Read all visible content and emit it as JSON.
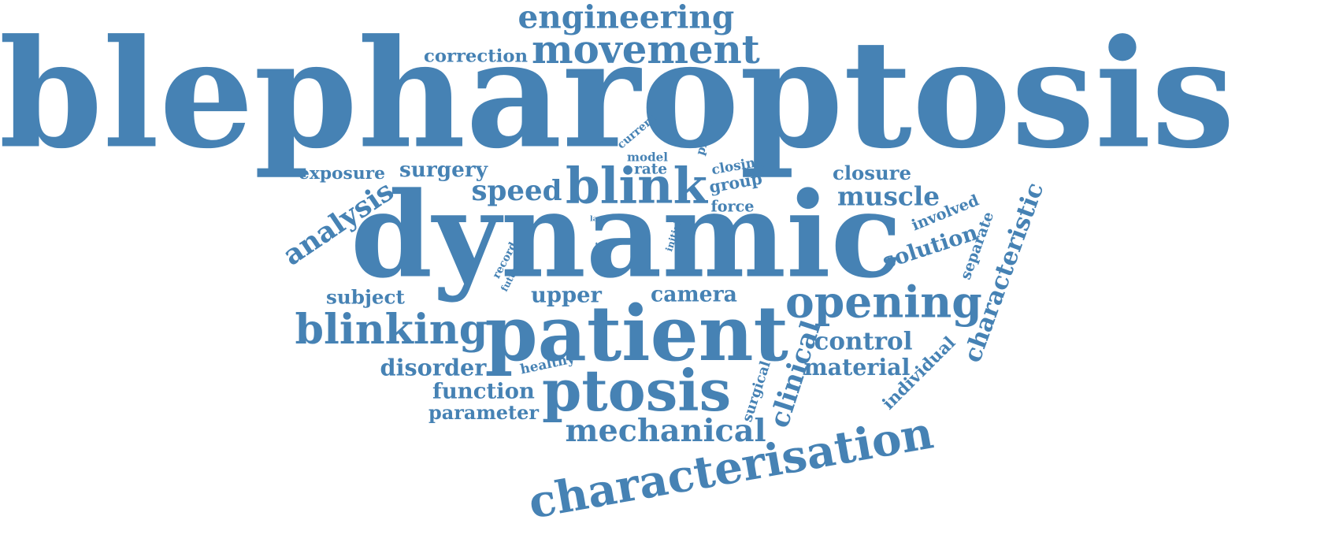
{
  "color": "#4682b4",
  "background": "#ffffff",
  "words": [
    {
      "id": "blepharoptosis",
      "text": "blepharoptosis"
    },
    {
      "id": "dynamic",
      "text": "dynamic"
    },
    {
      "id": "patient",
      "text": "patient"
    },
    {
      "id": "blink",
      "text": "blink"
    },
    {
      "id": "ptosis",
      "text": "ptosis"
    },
    {
      "id": "opening",
      "text": "opening"
    },
    {
      "id": "characterisation",
      "text": "characterisation"
    },
    {
      "id": "movement",
      "text": "movement"
    },
    {
      "id": "engineering",
      "text": "engineering"
    },
    {
      "id": "blinking",
      "text": "blinking"
    },
    {
      "id": "mechanical",
      "text": "mechanical"
    },
    {
      "id": "analysis",
      "text": "analysis"
    },
    {
      "id": "speed",
      "text": "speed"
    },
    {
      "id": "muscle",
      "text": "muscle"
    },
    {
      "id": "clinical",
      "text": "clinical"
    },
    {
      "id": "control",
      "text": "control"
    },
    {
      "id": "characteristic",
      "text": "characteristic"
    },
    {
      "id": "solution",
      "text": "solution"
    },
    {
      "id": "closure",
      "text": "closure"
    },
    {
      "id": "material",
      "text": "material"
    },
    {
      "id": "disorder",
      "text": "disorder"
    },
    {
      "id": "function",
      "text": "function"
    },
    {
      "id": "upper",
      "text": "upper"
    },
    {
      "id": "camera",
      "text": "camera"
    },
    {
      "id": "subject",
      "text": "subject"
    },
    {
      "id": "surgery",
      "text": "surgery"
    },
    {
      "id": "exposure",
      "text": "exposure"
    },
    {
      "id": "correction",
      "text": "correction"
    },
    {
      "id": "parameter",
      "text": "parameter"
    },
    {
      "id": "individual",
      "text": "individual"
    },
    {
      "id": "group",
      "text": "group"
    },
    {
      "id": "separate",
      "text": "separate"
    },
    {
      "id": "involved",
      "text": "involved"
    },
    {
      "id": "closing",
      "text": "closing"
    },
    {
      "id": "force",
      "text": "force"
    },
    {
      "id": "surgical",
      "text": "surgical"
    },
    {
      "id": "healthy",
      "text": "healthy"
    },
    {
      "id": "current",
      "text": "current"
    },
    {
      "id": "model",
      "text": "model"
    },
    {
      "id": "rate",
      "text": "rate"
    },
    {
      "id": "phase",
      "text": "phase"
    },
    {
      "id": "record",
      "text": "record"
    },
    {
      "id": "future",
      "text": "future"
    },
    {
      "id": "initial",
      "text": "initial"
    },
    {
      "id": "time",
      "text": "time"
    },
    {
      "id": "lack",
      "text": "lack"
    }
  ]
}
